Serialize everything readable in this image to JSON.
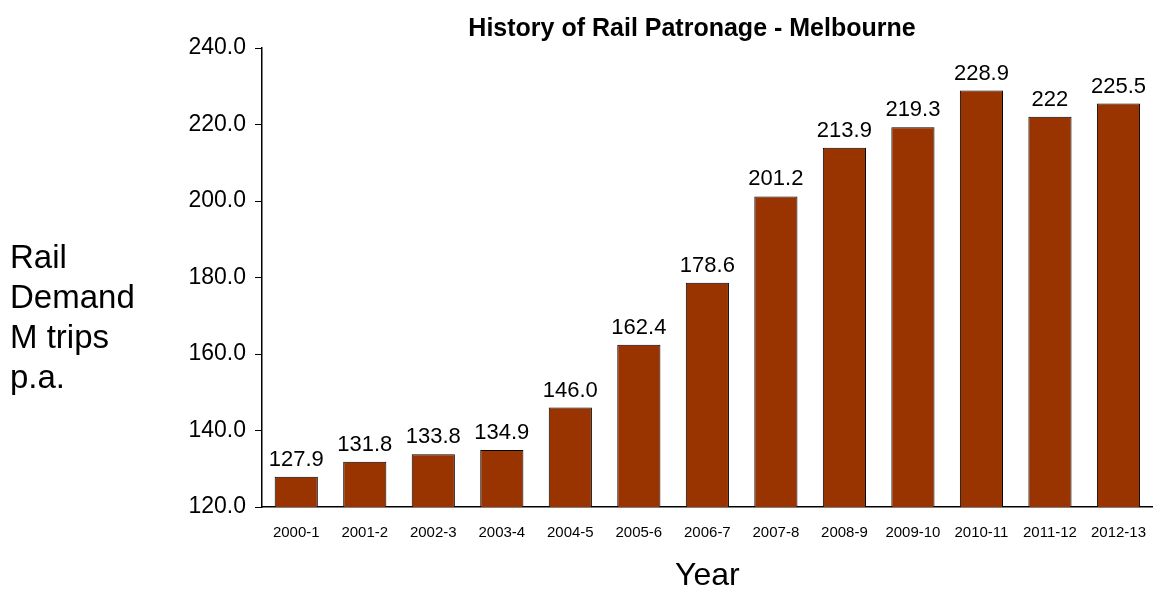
{
  "chart_data": {
    "type": "bar",
    "title": "History of Rail Patronage - Melbourne",
    "xlabel": "Year",
    "ylabel": "Rail Demand M trips p.a.",
    "categories": [
      "2000-1",
      "2001-2",
      "2002-3",
      "2003-4",
      "2004-5",
      "2005-6",
      "2006-7",
      "2007-8",
      "2008-9",
      "2009-10",
      "2010-11",
      "2011-12",
      "2012-13"
    ],
    "values": [
      127.9,
      131.8,
      133.8,
      134.9,
      146.0,
      162.4,
      178.6,
      201.2,
      213.9,
      219.3,
      228.9,
      222,
      225.5
    ],
    "value_labels": [
      "127.9",
      "131.8",
      "133.8",
      "134.9",
      "146.0",
      "162.4",
      "178.6",
      "201.2",
      "213.9",
      "219.3",
      "228.9",
      "222",
      "225.5"
    ],
    "color": "#993300",
    "ylim": [
      120,
      240
    ],
    "yticks": [
      {
        "value": 120,
        "label": "120.0"
      },
      {
        "value": 140,
        "label": "140.0"
      },
      {
        "value": 160,
        "label": "160.0"
      },
      {
        "value": 180,
        "label": "180.0"
      },
      {
        "value": 200,
        "label": "200.0"
      },
      {
        "value": 220,
        "label": "220.0"
      },
      {
        "value": 240,
        "label": "240.0"
      }
    ]
  }
}
